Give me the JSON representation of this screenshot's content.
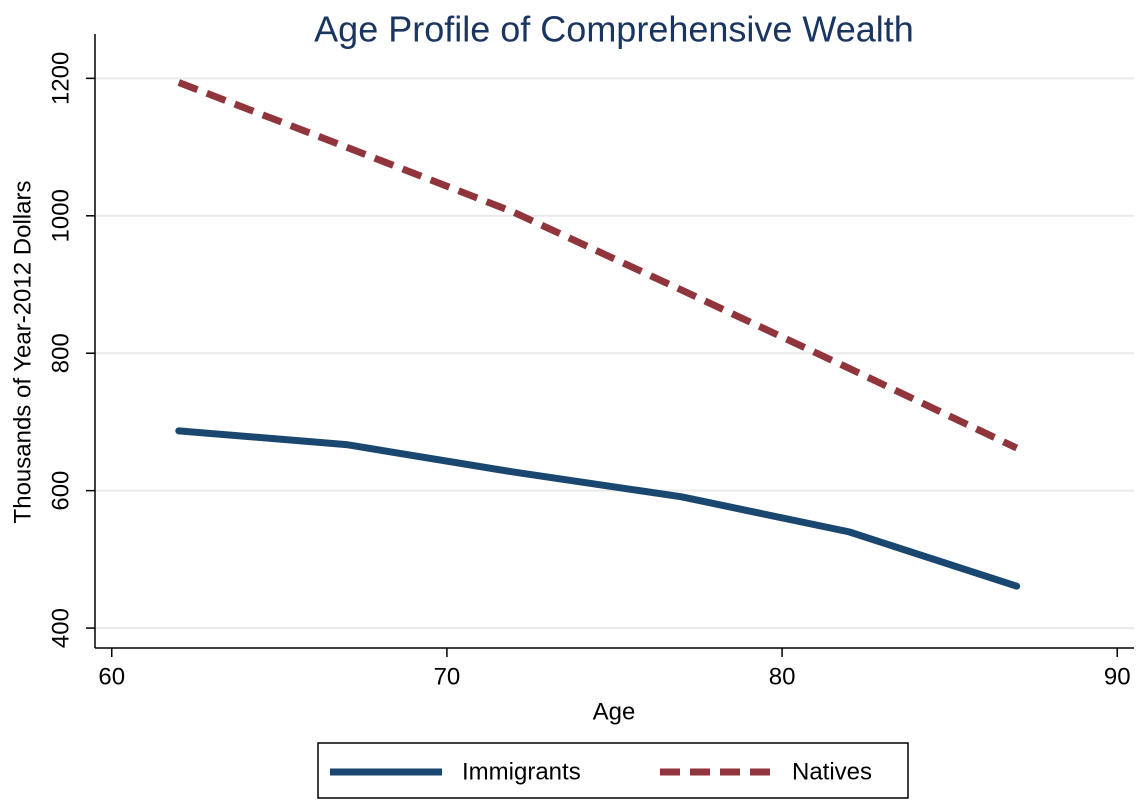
{
  "chart_data": {
    "type": "line",
    "title": "Age Profile of Comprehensive Wealth",
    "x_label": "Age",
    "y_label": "Thousands of Year-2012 Dollars",
    "x": [
      62,
      67,
      72,
      77,
      82,
      87
    ],
    "series": [
      {
        "name": "Immigrants",
        "color": "#1a476f",
        "dash": false,
        "values": [
          687,
          667,
          627,
          591,
          540,
          461
        ]
      },
      {
        "name": "Natives",
        "color": "#90353b",
        "dash": true,
        "values": [
          1194,
          1100,
          1005,
          892,
          778,
          662
        ]
      }
    ],
    "xlim": [
      59.5,
      90.5
    ],
    "xticks": [
      60,
      70,
      80,
      90
    ],
    "ylim": [
      371,
      1250
    ],
    "yticks": [
      400,
      600,
      800,
      1000,
      1200
    ],
    "grid": true,
    "legend": "bottom"
  }
}
